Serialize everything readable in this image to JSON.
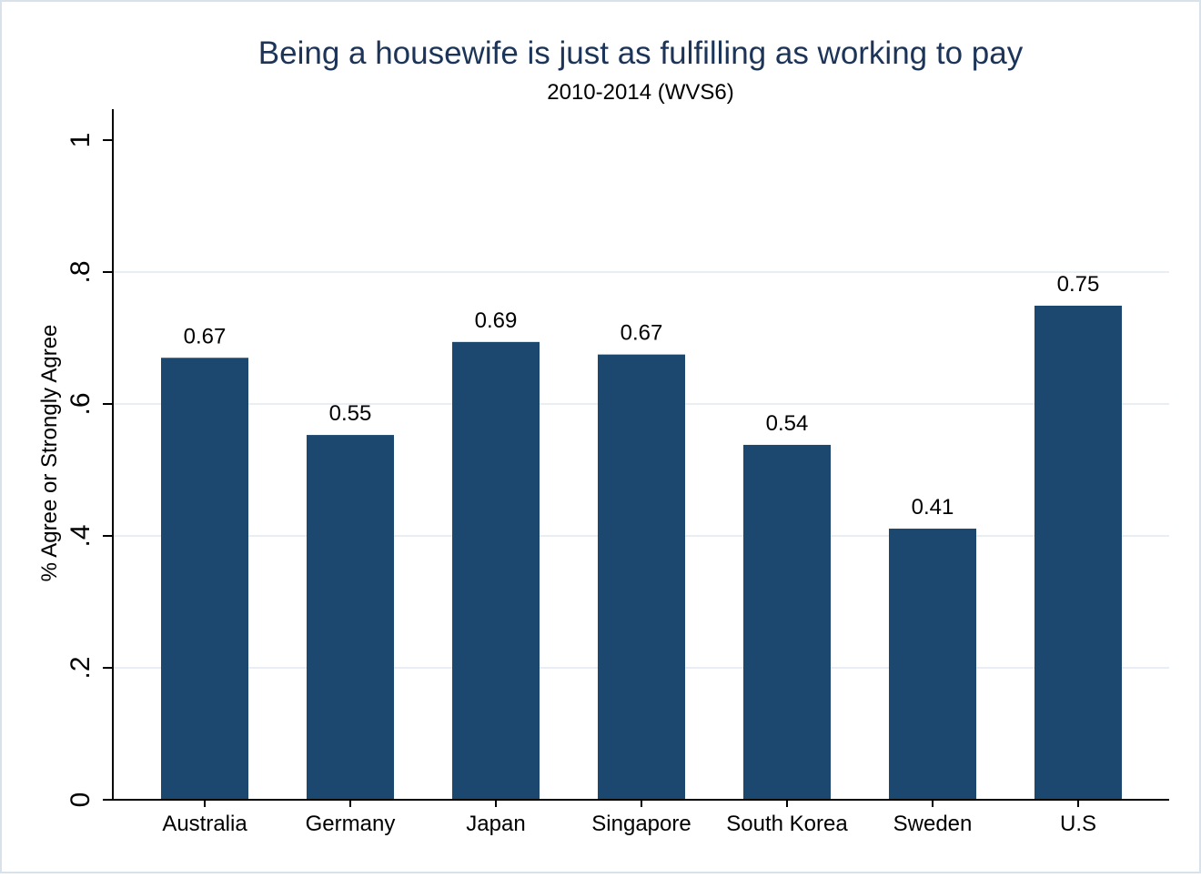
{
  "chart_data": {
    "type": "bar",
    "title": "Being a housewife is just as fulfilling as working to pay",
    "subtitle": "2010-2014 (WVS6)",
    "xlabel": "",
    "ylabel": "% Agree or Strongly Agree",
    "ylim": [
      0,
      1
    ],
    "yticks": [
      0,
      0.2,
      0.4,
      0.6,
      0.8,
      1
    ],
    "ytick_labels": [
      "0",
      ".2",
      ".4",
      ".6",
      ".8",
      "1"
    ],
    "grid": true,
    "legend": "none",
    "categories": [
      "Australia",
      "Germany",
      "Japan",
      "Singapore",
      "South Korea",
      "Sweden",
      "U.S"
    ],
    "values": [
      0.67,
      0.553,
      0.694,
      0.675,
      0.538,
      0.411,
      0.749
    ],
    "value_labels": [
      "0.67",
      "0.55",
      "0.69",
      "0.67",
      "0.54",
      "0.41",
      "0.75"
    ],
    "colors": {
      "bar": "#1c476f",
      "title": "#1c3458",
      "grid": "#e8eef3",
      "axis": "#000000",
      "frame": "#d8e2ea"
    }
  }
}
